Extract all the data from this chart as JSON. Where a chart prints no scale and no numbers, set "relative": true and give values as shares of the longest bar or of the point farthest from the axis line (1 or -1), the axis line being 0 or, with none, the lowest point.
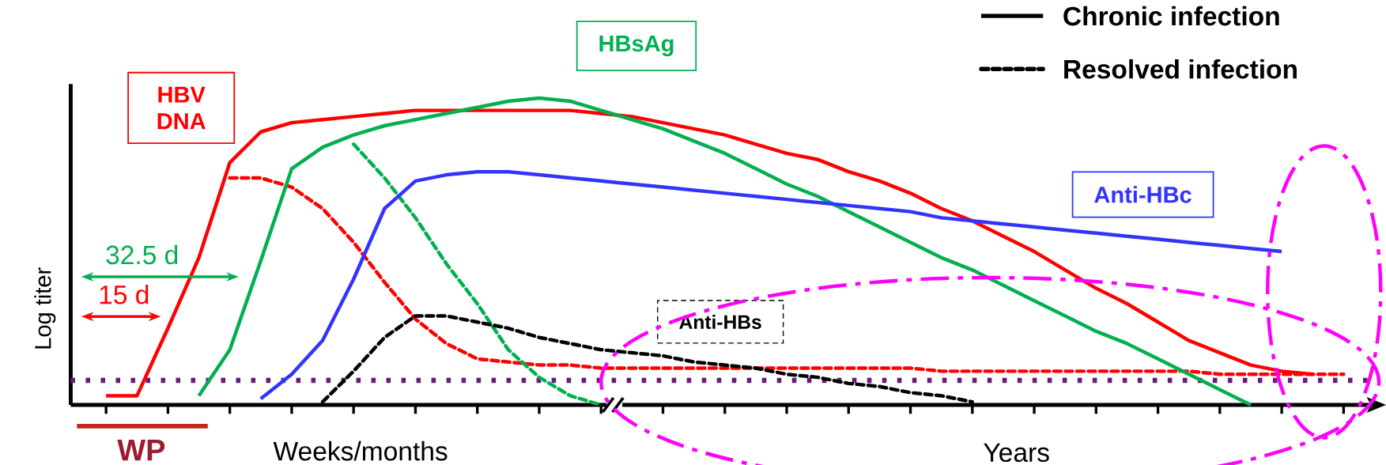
{
  "chart_data": {
    "type": "line",
    "relative": true,
    "ylabel": "Log titer",
    "marker": "none",
    "categories": [
      null,
      null,
      null,
      null,
      null,
      null,
      null,
      null,
      null,
      null,
      null,
      null,
      null,
      null,
      null,
      null,
      null,
      null,
      null,
      null,
      null,
      null,
      null,
      null,
      null,
      null,
      null,
      null,
      null,
      null,
      null,
      null,
      null,
      null,
      null,
      null,
      null,
      null,
      null,
      null,
      null,
      null,
      null
    ],
    "series": [
      {
        "name": "HBV DNA",
        "color": "#ff0000",
        "line_style": "solid",
        "values": [
          null,
          0.03,
          0.03,
          0.25,
          0.48,
          0.79,
          0.89,
          0.92,
          0.93,
          0.94,
          0.95,
          0.96,
          0.96,
          0.96,
          0.96,
          0.96,
          0.96,
          0.95,
          0.94,
          0.92,
          0.9,
          0.88,
          0.85,
          0.82,
          0.8,
          0.76,
          0.73,
          0.69,
          0.64,
          0.6,
          0.55,
          0.5,
          0.44,
          0.38,
          0.33,
          0.27,
          0.21,
          0.17,
          0.13,
          0.11,
          0.1,
          null,
          null
        ]
      },
      {
        "color": "#ff0000",
        "line_style": "dashed",
        "values": [
          null,
          null,
          null,
          null,
          null,
          0.74,
          0.74,
          0.71,
          0.64,
          0.53,
          0.4,
          0.28,
          0.2,
          0.15,
          0.14,
          0.13,
          0.13,
          0.12,
          0.12,
          0.12,
          0.12,
          0.12,
          0.12,
          0.12,
          0.12,
          0.12,
          0.12,
          0.12,
          0.11,
          0.11,
          0.11,
          0.11,
          0.11,
          0.11,
          0.11,
          0.11,
          0.11,
          0.1,
          0.1,
          0.1,
          0.1,
          0.1,
          null
        ]
      },
      {
        "name": "HBsAg",
        "color": "#00b050",
        "line_style": "solid",
        "values": [
          null,
          null,
          null,
          null,
          0.03,
          0.18,
          0.47,
          0.77,
          0.84,
          0.88,
          0.91,
          0.93,
          0.95,
          0.97,
          0.99,
          1.0,
          0.99,
          0.96,
          0.93,
          0.9,
          0.86,
          0.82,
          0.77,
          0.72,
          0.68,
          0.63,
          0.58,
          0.53,
          0.48,
          0.44,
          0.39,
          0.34,
          0.29,
          0.24,
          0.2,
          0.15,
          0.1,
          0.05,
          0,
          null,
          null,
          null,
          null
        ]
      },
      {
        "color": "#00b050",
        "line_style": "dashed",
        "values": [
          null,
          null,
          null,
          null,
          null,
          null,
          null,
          null,
          null,
          0.85,
          0.74,
          0.61,
          0.46,
          0.33,
          0.18,
          0.09,
          0.03,
          0,
          null,
          null,
          null,
          null,
          null,
          null,
          null,
          null,
          null,
          null,
          null,
          null,
          null,
          null,
          null,
          null,
          null,
          null,
          null,
          null,
          null,
          null,
          null,
          null,
          null
        ]
      },
      {
        "name": "Anti-HBc",
        "color": "#3333ff",
        "line_style": "solid",
        "values": [
          null,
          null,
          null,
          null,
          null,
          null,
          0.02,
          0.1,
          0.21,
          0.41,
          0.64,
          0.73,
          0.75,
          0.76,
          0.76,
          0.75,
          0.74,
          0.73,
          0.72,
          0.71,
          0.7,
          0.69,
          0.68,
          0.67,
          0.66,
          0.65,
          0.64,
          0.63,
          0.61,
          0.6,
          0.59,
          0.58,
          0.57,
          0.56,
          0.55,
          0.54,
          0.53,
          0.52,
          0.51,
          0.5,
          null,
          null,
          null
        ]
      },
      {
        "name": "Anti-HBs",
        "color": "#000000",
        "line_style": "dashed",
        "values": [
          null,
          null,
          null,
          null,
          null,
          null,
          null,
          null,
          0.01,
          0.11,
          0.22,
          0.29,
          0.29,
          0.27,
          0.25,
          0.22,
          0.2,
          0.18,
          0.17,
          0.16,
          0.14,
          0.13,
          0.12,
          0.1,
          0.09,
          0.07,
          0.06,
          0.04,
          0.03,
          0.01,
          null,
          null,
          null,
          null,
          null,
          null,
          null,
          null,
          null,
          null,
          null,
          null,
          null
        ]
      }
    ],
    "ref_lines": [
      {
        "axis": "y",
        "value": 0.08,
        "color": "#6a1b7a",
        "line_style": "dotted"
      }
    ],
    "annotations": [
      "Chronic infection",
      "Resolved infection",
      "32.5 d",
      "15 d",
      "WP",
      "Weeks/months",
      "Years"
    ]
  }
}
